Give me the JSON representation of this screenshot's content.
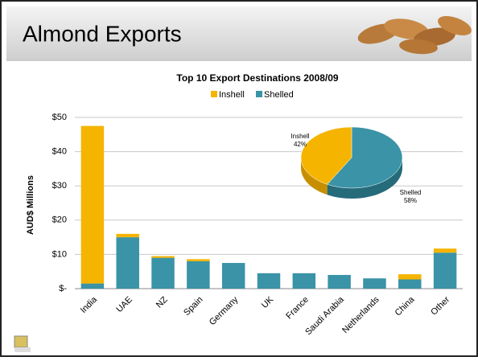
{
  "slide_title": "Almond Exports",
  "chart_data": [
    {
      "type": "stacked-bar",
      "title": "Top 10 Export Destinations 2008/09",
      "y_label": "AUD$ Millions",
      "categories": [
        "India",
        "UAE",
        "NZ",
        "Spain",
        "Germany",
        "UK",
        "France",
        "Saudi Arabia",
        "Netherlands",
        "China",
        "Other"
      ],
      "series": [
        {
          "name": "Inshell",
          "color": "#f5b400",
          "values": [
            46,
            1,
            0.5,
            0.6,
            0,
            0,
            0,
            0,
            0,
            1.5,
            1.2
          ]
        },
        {
          "name": "Shelled",
          "color": "#3a93a6",
          "values": [
            1.5,
            15,
            9,
            8,
            7.5,
            4.5,
            4.5,
            4,
            3,
            2.7,
            10.5
          ]
        }
      ],
      "ylim": [
        0,
        50
      ],
      "yticks": [
        {
          "value": 0,
          "label": "$-"
        },
        {
          "value": 10,
          "label": "$10"
        },
        {
          "value": 20,
          "label": "$20"
        },
        {
          "value": 30,
          "label": "$30"
        },
        {
          "value": 40,
          "label": "$40"
        },
        {
          "value": 50,
          "label": "$50"
        }
      ],
      "grid": true,
      "legend": "top"
    },
    {
      "type": "pie",
      "categories": [
        "Inshell",
        "Shelled"
      ],
      "values": [
        42,
        58
      ],
      "value_labels": [
        "42%",
        "58%"
      ],
      "colors": [
        "#f5b400",
        "#3a93a6"
      ]
    }
  ]
}
